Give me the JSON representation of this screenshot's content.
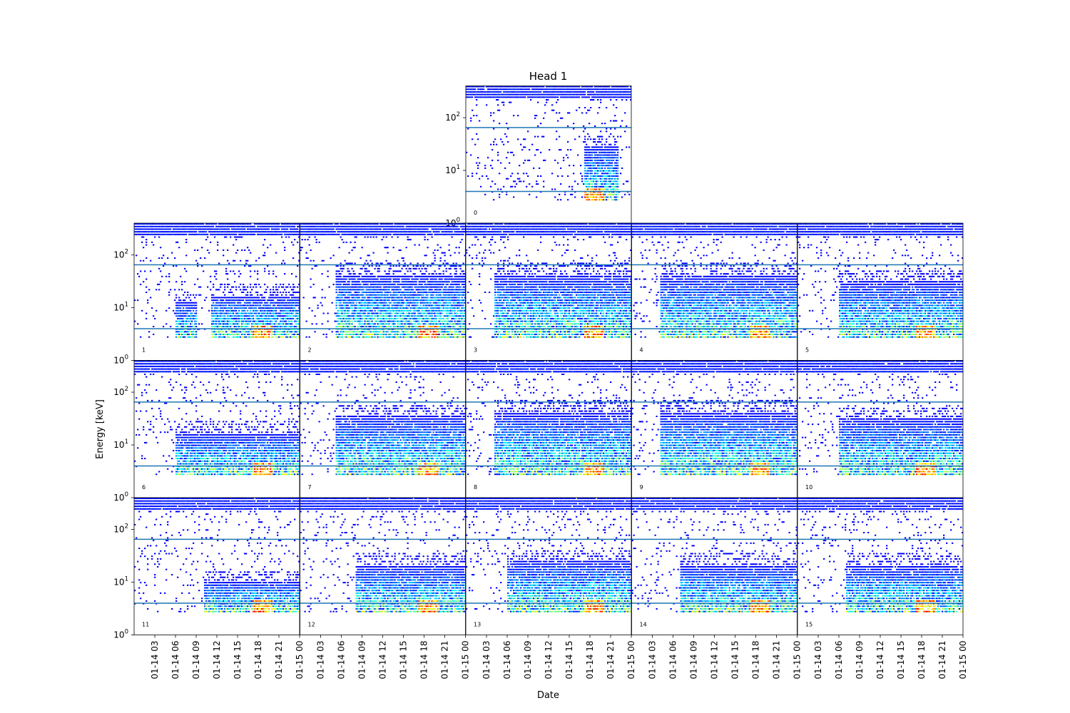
{
  "chart_data": {
    "type": "heatmap",
    "title": "Head 1",
    "xlabel": "Date",
    "ylabel": "Energy [keV]",
    "yscale": "log",
    "ylim": [
      1,
      400
    ],
    "y_tick_labels": [
      {
        "base": "10",
        "exp": "0",
        "value": 1
      },
      {
        "base": "10",
        "exp": "1",
        "value": 10
      },
      {
        "base": "10",
        "exp": "2",
        "value": 100
      }
    ],
    "x_tick_labels": [
      "01-14 03",
      "01-14 06",
      "01-14 09",
      "01-14 12",
      "01-14 15",
      "01-14 18",
      "01-14 21",
      "01-15 00"
    ],
    "time_range_hours": [
      0,
      24
    ],
    "horizontal_lines_keV": [
      4,
      65
    ],
    "colormap": "jet",
    "panels": [
      {
        "label": "0",
        "activity": [
          [
            17,
            22,
            28
          ]
        ]
      },
      {
        "label": "1",
        "activity": [
          [
            11,
            24,
            16
          ],
          [
            6,
            9,
            12
          ]
        ]
      },
      {
        "label": "2",
        "activity": [
          [
            5,
            24,
            40
          ]
        ]
      },
      {
        "label": "3",
        "activity": [
          [
            4,
            24,
            40
          ]
        ]
      },
      {
        "label": "4",
        "activity": [
          [
            4,
            24,
            40
          ]
        ]
      },
      {
        "label": "5",
        "activity": [
          [
            6,
            24,
            30
          ]
        ]
      },
      {
        "label": "6",
        "activity": [
          [
            6,
            24,
            16
          ]
        ]
      },
      {
        "label": "7",
        "activity": [
          [
            5,
            24,
            35
          ]
        ]
      },
      {
        "label": "8",
        "activity": [
          [
            4,
            24,
            40
          ]
        ]
      },
      {
        "label": "9",
        "activity": [
          [
            4,
            24,
            40
          ]
        ]
      },
      {
        "label": "10",
        "activity": [
          [
            6,
            24,
            30
          ]
        ]
      },
      {
        "label": "11",
        "activity": [
          [
            10,
            24,
            10
          ]
        ]
      },
      {
        "label": "12",
        "activity": [
          [
            8,
            24,
            20
          ]
        ]
      },
      {
        "label": "13",
        "activity": [
          [
            6,
            24,
            25
          ]
        ]
      },
      {
        "label": "14",
        "activity": [
          [
            7,
            24,
            20
          ]
        ]
      },
      {
        "label": "15",
        "activity": [
          [
            7,
            24,
            20
          ]
        ]
      }
    ]
  }
}
